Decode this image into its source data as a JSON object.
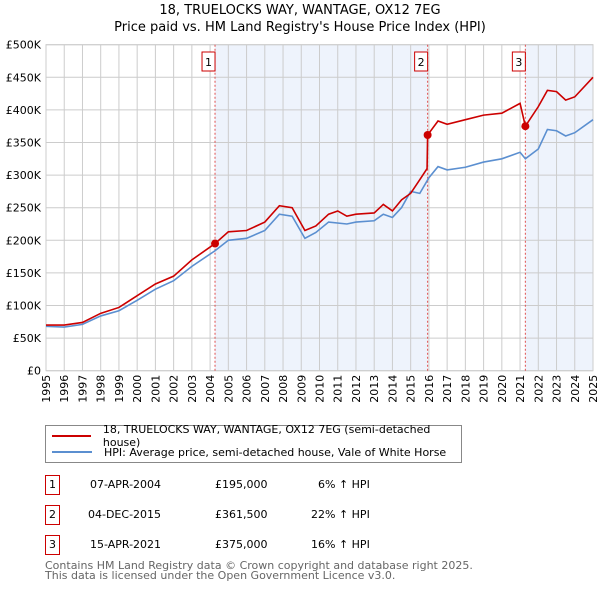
{
  "chart_data": {
    "type": "line",
    "title": "18, TRUELOCKS WAY, WANTAGE, OX12 7EG",
    "subtitle": "Price paid vs. HM Land Registry's House Price Index (HPI)",
    "xlim": [
      1995,
      2025
    ],
    "ylim": [
      0,
      500000
    ],
    "yticks": [
      0,
      50000,
      100000,
      150000,
      200000,
      250000,
      300000,
      350000,
      400000,
      450000,
      500000
    ],
    "ytick_labels": [
      "£0",
      "£50K",
      "£100K",
      "£150K",
      "£200K",
      "£250K",
      "£300K",
      "£350K",
      "£400K",
      "£450K",
      "£500K"
    ],
    "xticks": [
      "1995",
      "1996",
      "1997",
      "1998",
      "1999",
      "2000",
      "2001",
      "2002",
      "2003",
      "2004",
      "2005",
      "2006",
      "2007",
      "2008",
      "2009",
      "2010",
      "2011",
      "2012",
      "2013",
      "2014",
      "2015",
      "2016",
      "2017",
      "2018",
      "2019",
      "2020",
      "2021",
      "2022",
      "2023",
      "2024",
      "2025"
    ],
    "grid": true,
    "shaded_ranges": [
      [
        2004.27,
        2015.93
      ],
      [
        2021.29,
        2025
      ]
    ],
    "series": [
      {
        "name": "18, TRUELOCKS WAY, WANTAGE, OX12 7EG (semi-detached house)",
        "color": "#cc0000",
        "x": [
          1995,
          1996,
          1997,
          1998,
          1999,
          2000,
          2001,
          2002,
          2003,
          2004.27,
          2005,
          2006,
          2007,
          2007.8,
          2008.5,
          2009.2,
          2009.8,
          2010.5,
          2011,
          2011.5,
          2012,
          2013,
          2013.5,
          2014,
          2014.5,
          2015,
          2015.5,
          2015.9,
          2015.93,
          2016.5,
          2017,
          2018,
          2019,
          2020,
          2021,
          2021.29,
          2022,
          2022.5,
          2023,
          2023.5,
          2024,
          2025
        ],
        "y": [
          70000,
          70000,
          74000,
          88000,
          97000,
          115000,
          133000,
          145000,
          170000,
          195000,
          213000,
          215000,
          228000,
          253000,
          250000,
          215000,
          222000,
          240000,
          245000,
          237000,
          240000,
          242000,
          255000,
          245000,
          262000,
          272000,
          293000,
          310000,
          361500,
          383000,
          378000,
          385000,
          392000,
          395000,
          410000,
          375000,
          405000,
          430000,
          428000,
          415000,
          420000,
          450000
        ]
      },
      {
        "name": "HPI: Average price, semi-detached house, Vale of White Horse",
        "color": "#5b8fd0",
        "x": [
          1995,
          1996,
          1997,
          1998,
          1999,
          2000,
          2001,
          2002,
          2003,
          2004.27,
          2005,
          2006,
          2007,
          2007.8,
          2008.5,
          2009.2,
          2009.8,
          2010.5,
          2011.5,
          2012,
          2013,
          2013.5,
          2014,
          2014.5,
          2015,
          2015.5,
          2016,
          2016.5,
          2017,
          2018,
          2019,
          2020,
          2021,
          2021.29,
          2022,
          2022.5,
          2023,
          2023.5,
          2024,
          2025
        ],
        "y": [
          68000,
          67000,
          71000,
          84000,
          92000,
          108000,
          125000,
          138000,
          160000,
          184000,
          200000,
          203000,
          215000,
          240000,
          237000,
          203000,
          212000,
          228000,
          225000,
          228000,
          230000,
          240000,
          235000,
          250000,
          275000,
          272000,
          296000,
          313000,
          308000,
          312000,
          320000,
          325000,
          335000,
          325000,
          340000,
          370000,
          368000,
          360000,
          365000,
          385000
        ]
      }
    ],
    "sales": [
      {
        "label": "1",
        "x": 2004.27,
        "y": 195000,
        "date": "07-APR-2004",
        "price": "£195,000",
        "hpi": "6% ↑ HPI"
      },
      {
        "label": "2",
        "x": 2015.93,
        "y": 361500,
        "date": "04-DEC-2015",
        "price": "£361,500",
        "hpi": "22% ↑ HPI"
      },
      {
        "label": "3",
        "x": 2021.29,
        "y": 375000,
        "date": "15-APR-2021",
        "price": "£375,000",
        "hpi": "16% ↑ HPI"
      }
    ]
  },
  "footer": {
    "line1": "Contains HM Land Registry data © Crown copyright and database right 2025.",
    "line2": "This data is licensed under the Open Government Licence v3.0."
  }
}
